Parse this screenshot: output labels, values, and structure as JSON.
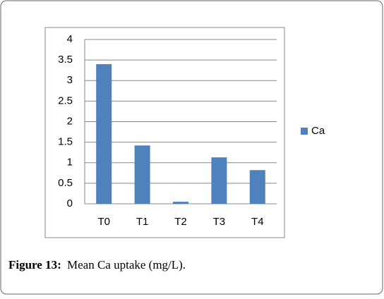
{
  "chart_data": {
    "type": "bar",
    "categories": [
      "T0",
      "T1",
      "T2",
      "T3",
      "T4"
    ],
    "series": [
      {
        "name": "Ca",
        "color": "#4f81bd",
        "values": [
          3.4,
          1.42,
          0.05,
          1.13,
          0.82
        ]
      }
    ],
    "ylim": [
      0,
      4
    ],
    "yticks": [
      0,
      0.5,
      1,
      1.5,
      2,
      2.5,
      3,
      3.5,
      4
    ],
    "grid": true,
    "legend": "right"
  },
  "figure_label": "Figure 13:",
  "caption": "Mean Ca uptake (mg/L)."
}
